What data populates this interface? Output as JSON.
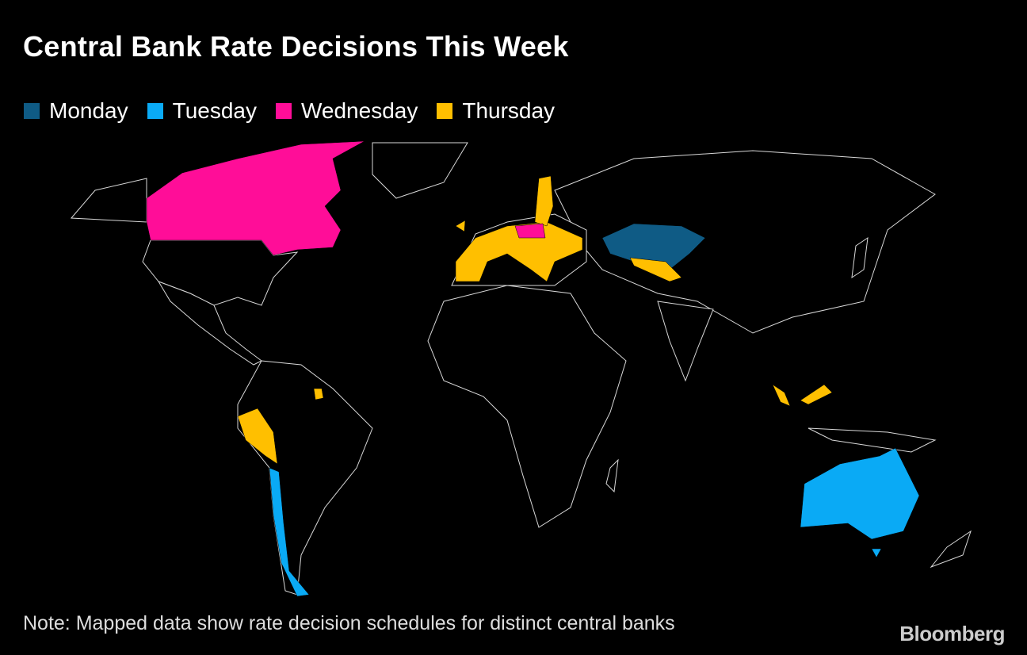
{
  "title": "Central Bank Rate Decisions This Week",
  "legend": [
    {
      "label": "Monday",
      "color": "#0f5b85"
    },
    {
      "label": "Tuesday",
      "color": "#0aaaf5"
    },
    {
      "label": "Wednesday",
      "color": "#ff0d98"
    },
    {
      "label": "Thursday",
      "color": "#ffbf00"
    }
  ],
  "note": "Note: Mapped data show rate decision schedules for distinct central banks",
  "source": "Bloomberg"
}
